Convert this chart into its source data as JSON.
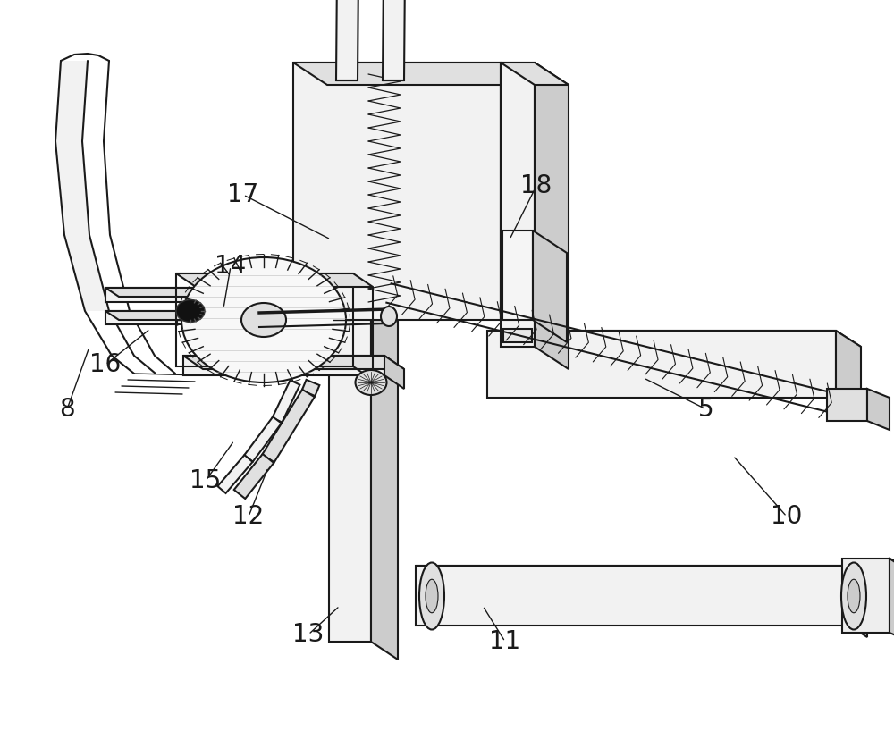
{
  "bg_color": "#ffffff",
  "lc": "#1a1a1a",
  "lw": 1.5,
  "figsize": [
    10.0,
    8.18
  ],
  "dpi": 100,
  "fc_light": "#f2f2f2",
  "fc_mid": "#e0e0e0",
  "fc_dark": "#cccccc",
  "fc_darker": "#b8b8b8"
}
